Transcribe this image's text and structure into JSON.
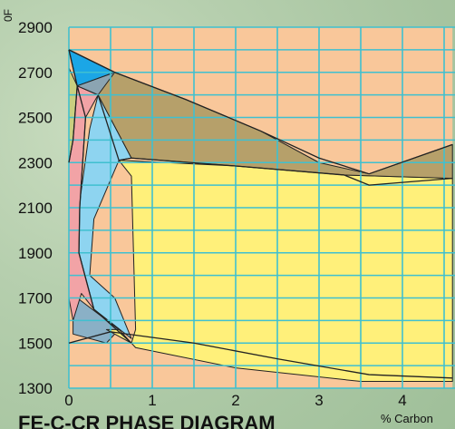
{
  "chart_data": {
    "type": "area",
    "title": "FE-C-CR PHASE DIAGRAM",
    "ylabel": "0F",
    "xlabel": "% Carbon",
    "x_ticks": [
      "0",
      "1",
      "2",
      "3",
      "4"
    ],
    "y_ticks": [
      "2900",
      "2700",
      "2500",
      "2300",
      "2100",
      "1900",
      "1700",
      "1500",
      "1300"
    ],
    "xlim": [
      0,
      4.6
    ],
    "ylim": [
      1300,
      2900
    ],
    "grid": true,
    "regions": [
      {
        "id": "base-orange",
        "color": "#f9c79a",
        "points": [
          [
            0,
            1300
          ],
          [
            4.6,
            1300
          ],
          [
            4.6,
            2900
          ],
          [
            0,
            2900
          ]
        ]
      },
      {
        "id": "lower-blue",
        "color": "#8ab0c6",
        "points": [
          [
            0.05,
            1540
          ],
          [
            0.45,
            1500
          ],
          [
            0.6,
            1560
          ],
          [
            0.1,
            1700
          ],
          [
            0.05,
            1600
          ]
        ]
      },
      {
        "id": "upper-greenyellow",
        "color": "#c9cf80",
        "points": [
          [
            0,
            2720
          ],
          [
            0.1,
            2640
          ],
          [
            0.05,
            2400
          ],
          [
            0,
            2300
          ]
        ]
      },
      {
        "id": "big-yellow",
        "color": "#fff07a",
        "points": [
          [
            0.6,
            2310
          ],
          [
            2.0,
            2285
          ],
          [
            3.3,
            2245
          ],
          [
            4.6,
            2230
          ],
          [
            4.6,
            1330
          ],
          [
            3.5,
            1330
          ],
          [
            2.0,
            1390
          ],
          [
            0.8,
            1480
          ],
          [
            0.6,
            1560
          ],
          [
            0.45,
            1560
          ],
          [
            0.75,
            1500
          ],
          [
            0.8,
            1560
          ],
          [
            0.75,
            2240
          ]
        ]
      },
      {
        "id": "left-light-blue",
        "color": "#8ed4f0",
        "points": [
          [
            0.35,
            2600
          ],
          [
            0.25,
            2450
          ],
          [
            0.12,
            2100
          ],
          [
            0.12,
            1900
          ],
          [
            0.3,
            1650
          ],
          [
            0.75,
            1520
          ],
          [
            0.55,
            1700
          ],
          [
            0.25,
            1800
          ],
          [
            0.3,
            2050
          ],
          [
            0.6,
            2310
          ],
          [
            0.75,
            2320
          ]
        ]
      },
      {
        "id": "left-pink",
        "color": "#f2a3a6",
        "points": [
          [
            0.1,
            2640
          ],
          [
            0.35,
            2600
          ],
          [
            0.2,
            2500
          ],
          [
            0.13,
            2100
          ],
          [
            0.12,
            1900
          ],
          [
            0.3,
            1650
          ],
          [
            0.15,
            1720
          ],
          [
            0.05,
            1600
          ],
          [
            0.0,
            1700
          ],
          [
            0.0,
            2300
          ],
          [
            0.05,
            2400
          ]
        ]
      },
      {
        "id": "liquidus-brown",
        "color": "#b6a06a",
        "points": [
          [
            0.1,
            2640
          ],
          [
            0.55,
            2700
          ],
          [
            1.4,
            2580
          ],
          [
            2.3,
            2440
          ],
          [
            3.0,
            2300
          ],
          [
            3.6,
            2250
          ],
          [
            4.6,
            2380
          ],
          [
            4.6,
            2230
          ],
          [
            3.3,
            2245
          ],
          [
            2.0,
            2285
          ],
          [
            0.75,
            2320
          ],
          [
            0.35,
            2600
          ]
        ]
      },
      {
        "id": "top-blue",
        "color": "#1ba6e6",
        "points": [
          [
            0.0,
            2800
          ],
          [
            0.55,
            2700
          ],
          [
            0.1,
            2640
          ]
        ]
      },
      {
        "id": "top-gray-wedge",
        "color": "#8ba4b2",
        "points": [
          [
            0.1,
            2640
          ],
          [
            0.55,
            2700
          ],
          [
            0.35,
            2600
          ]
        ]
      }
    ],
    "boundaries": [
      {
        "id": "liquidus-left",
        "points": [
          [
            0.0,
            2800
          ],
          [
            0.55,
            2700
          ],
          [
            1.4,
            2580
          ],
          [
            2.3,
            2440
          ],
          [
            3.0,
            2320
          ],
          [
            3.6,
            2250
          ]
        ]
      },
      {
        "id": "liquidus-right",
        "points": [
          [
            3.6,
            2250
          ],
          [
            4.6,
            2380
          ]
        ]
      },
      {
        "id": "eutectic-line",
        "points": [
          [
            0.75,
            2320
          ],
          [
            2.0,
            2285
          ],
          [
            3.3,
            2245
          ],
          [
            3.6,
            2200
          ],
          [
            4.6,
            2230
          ]
        ]
      },
      {
        "id": "solidus-left",
        "points": [
          [
            0.0,
            2800
          ],
          [
            0.1,
            2640
          ],
          [
            0.05,
            2400
          ],
          [
            0.0,
            2300
          ]
        ]
      },
      {
        "id": "austenite-edge",
        "points": [
          [
            0.35,
            2600
          ],
          [
            0.6,
            2310
          ],
          [
            0.75,
            2320
          ]
        ]
      },
      {
        "id": "pink-edge",
        "points": [
          [
            0.1,
            2640
          ],
          [
            0.2,
            2500
          ],
          [
            0.13,
            2100
          ],
          [
            0.12,
            1900
          ],
          [
            0.3,
            1650
          ],
          [
            0.75,
            1500
          ]
        ]
      },
      {
        "id": "lower-line",
        "points": [
          [
            0.0,
            1500
          ],
          [
            0.5,
            1550
          ],
          [
            1.5,
            1500
          ],
          [
            2.5,
            1430
          ],
          [
            3.6,
            1360
          ],
          [
            4.6,
            1345
          ]
        ]
      }
    ]
  }
}
